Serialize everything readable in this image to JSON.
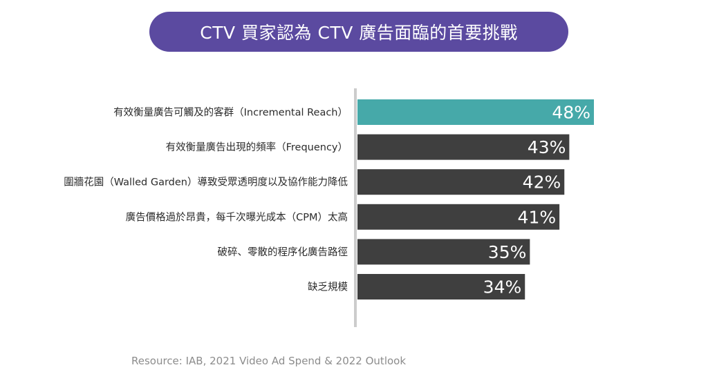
{
  "title": "CTV 買家認為 CTV 廣告面臨的首要挑戰",
  "source": "Resource: IAB, 2021 Video Ad Spend & 2022 Outlook",
  "colors": {
    "highlight": "#46a9a9",
    "bar": "#3f3f3f",
    "axis": "#cccccc",
    "label": "#2b2b2b"
  },
  "chart_data": {
    "type": "bar",
    "orientation": "horizontal",
    "categories": [
      "有效衡量廣告可觸及的客群（Incremental Reach）",
      "有效衡量廣告出現的頻率（Frequency）",
      "圍牆花園（Walled Garden）導致受眾透明度以及協作能力降低",
      "廣告價格過於昂貴，每千次曝光成本（CPM）太高",
      "破碎、零散的程序化廣告路徑",
      "缺乏規模"
    ],
    "values": [
      48,
      43,
      42,
      41,
      35,
      34
    ],
    "value_labels": [
      "48%",
      "43%",
      "42%",
      "41%",
      "35%",
      "34%"
    ],
    "highlight_index": 0,
    "xlim": [
      0,
      48
    ],
    "grid": false,
    "legend": "none"
  }
}
